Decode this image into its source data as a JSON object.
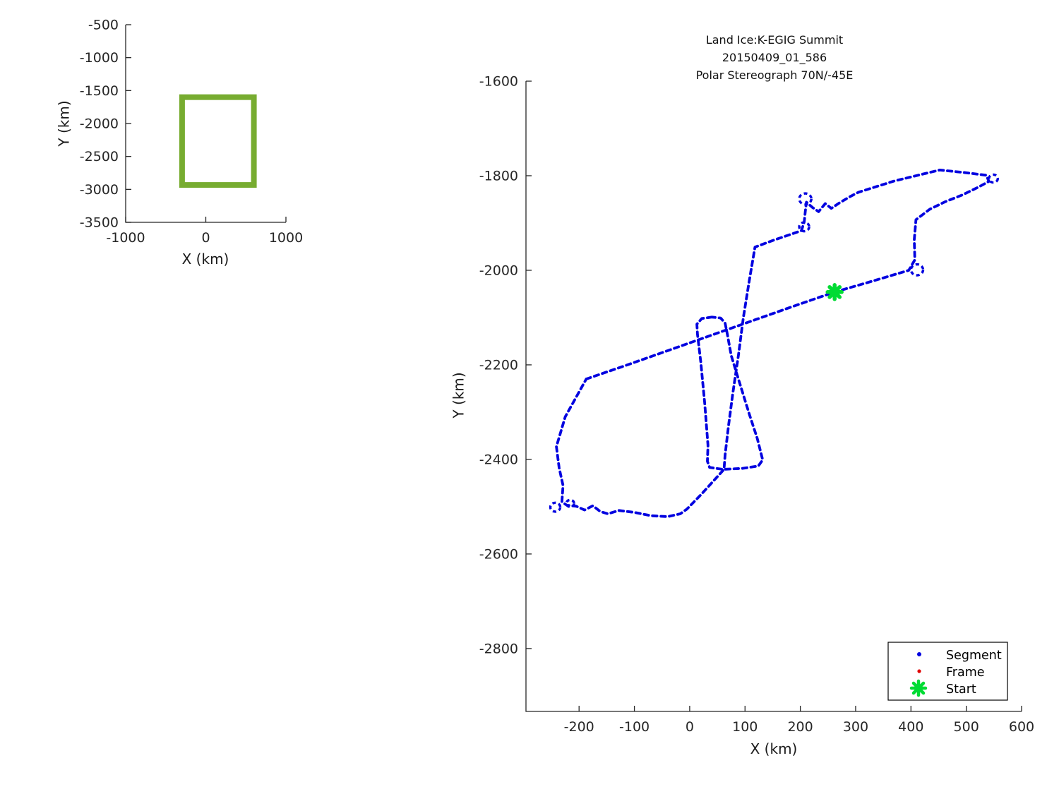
{
  "figure": {
    "title_lines": [
      "Land Ice:K-EGIG Summit",
      "20150409_01_586",
      "Polar Stereograph 70N/-45E"
    ]
  },
  "colors": {
    "segment": "#0202E0",
    "frame": "#E00000",
    "start": "#00DB33",
    "coverage_box": "#77AC30",
    "axis": "#262626"
  },
  "legend": {
    "items": [
      {
        "label": "Segment",
        "marker": "dot",
        "color": "#0202E0"
      },
      {
        "label": "Frame",
        "marker": "dot",
        "color": "#E00000"
      },
      {
        "label": "Start",
        "marker": "asterisk",
        "color": "#00DB33"
      }
    ]
  },
  "chart_data": [
    {
      "id": "coverage-overview",
      "type": "line",
      "title": "",
      "xlabel": "X (km)",
      "ylabel": "Y (km)",
      "xlim": [
        -1000,
        1000
      ],
      "ylim": [
        -3500,
        -500
      ],
      "x_ticks": [
        -1000,
        0,
        1000
      ],
      "y_ticks": [
        -500,
        -1000,
        -1500,
        -2000,
        -2500,
        -3000,
        -3500
      ],
      "grid": false,
      "series": [
        {
          "name": "coverage-extent-box",
          "type": "rect",
          "x0": -296,
          "x1": 600,
          "y0": -2933,
          "y1": -1600,
          "color": "#77AC30",
          "line_width": 8
        }
      ]
    },
    {
      "id": "flight-track",
      "type": "line",
      "title_lines": [
        "Land Ice:K-EGIG Summit",
        "20150409_01_586",
        "Polar Stereograph 70N/-45E"
      ],
      "xlabel": "X (km)",
      "ylabel": "Y (km)",
      "xlim": [
        -296,
        600
      ],
      "ylim": [
        -2933,
        -1600
      ],
      "x_ticks": [
        -200,
        -100,
        0,
        100,
        200,
        300,
        400,
        500,
        600
      ],
      "y_ticks": [
        -1600,
        -1800,
        -2000,
        -2200,
        -2400,
        -2600,
        -2800
      ],
      "grid": false,
      "legend_position": "lower right",
      "series": [
        {
          "name": "Segment",
          "type": "path",
          "color": "#0202E0",
          "line_width": 3.8,
          "dash": [
            6.5,
            5.5
          ],
          "polylines": [
            [
              [
                -187,
                -2230
              ],
              [
                -120,
                -2203
              ],
              [
                -40,
                -2170
              ],
              [
                40,
                -2137
              ],
              [
                120,
                -2104
              ],
              [
                200,
                -2071
              ],
              [
                262,
                -2046
              ],
              [
                330,
                -2023
              ],
              [
                396,
                -2000
              ],
              [
                407,
                -1978
              ],
              [
                406,
                -1935
              ],
              [
                409,
                -1893
              ],
              [
                434,
                -1871
              ],
              [
                462,
                -1855
              ],
              [
                492,
                -1841
              ],
              [
                522,
                -1824
              ],
              [
                541,
                -1812
              ],
              [
                536,
                -1799
              ],
              [
                495,
                -1793
              ],
              [
                452,
                -1788
              ],
              [
                370,
                -1811
              ],
              [
                305,
                -1835
              ],
              [
                287,
                -1846
              ],
              [
                270,
                -1858
              ],
              [
                256,
                -1869
              ],
              [
                245,
                -1859
              ],
              [
                233,
                -1876
              ],
              [
                222,
                -1867
              ],
              [
                211,
                -1856
              ],
              [
                209,
                -1875
              ],
              [
                207,
                -1898
              ],
              [
                202,
                -1916
              ],
              [
                185,
                -1923
              ],
              [
                150,
                -1937
              ],
              [
                118,
                -1951
              ],
              [
                108,
                -2020
              ],
              [
                97,
                -2100
              ],
              [
                88,
                -2180
              ],
              [
                78,
                -2260
              ],
              [
                70,
                -2330
              ],
              [
                64,
                -2390
              ],
              [
                62,
                -2421
              ],
              [
                45,
                -2443
              ],
              [
                20,
                -2475
              ],
              [
                -5,
                -2505
              ],
              [
                -17,
                -2515
              ],
              [
                -40,
                -2521
              ],
              [
                -70,
                -2519
              ],
              [
                -100,
                -2512
              ],
              [
                -128,
                -2508
              ],
              [
                -148,
                -2515
              ],
              [
                -162,
                -2510
              ],
              [
                -175,
                -2498
              ],
              [
                -190,
                -2507
              ],
              [
                -205,
                -2499
              ],
              [
                -222,
                -2497
              ],
              [
                -231,
                -2490
              ],
              [
                -229,
                -2455
              ],
              [
                -236,
                -2418
              ],
              [
                -241,
                -2373
              ],
              [
                -225,
                -2310
              ],
              [
                -187,
                -2230
              ]
            ],
            [
              [
                40,
                -2099
              ],
              [
                22,
                -2102
              ],
              [
                13,
                -2114
              ],
              [
                14,
                -2135
              ],
              [
                20,
                -2194
              ],
              [
                27,
                -2280
              ],
              [
                33,
                -2370
              ],
              [
                32,
                -2404
              ],
              [
                36,
                -2417
              ],
              [
                60,
                -2421
              ],
              [
                95,
                -2419
              ],
              [
                124,
                -2414
              ],
              [
                132,
                -2401
              ],
              [
                122,
                -2355
              ],
              [
                108,
                -2305
              ],
              [
                88,
                -2230
              ],
              [
                75,
                -2180
              ],
              [
                68,
                -2135
              ],
              [
                64,
                -2112
              ],
              [
                56,
                -2101
              ],
              [
                40,
                -2099
              ]
            ]
          ],
          "loops": [
            {
              "cx": 411,
              "cy": -1999,
              "r": 11
            },
            {
              "cx": 549,
              "cy": -1806,
              "r": 8
            },
            {
              "cx": 209,
              "cy": -1849,
              "r": 11
            },
            {
              "cx": 207,
              "cy": -1908,
              "r": 9
            },
            {
              "cx": -243,
              "cy": -2501,
              "r": 9
            },
            {
              "cx": -216,
              "cy": -2493,
              "r": 7
            }
          ]
        },
        {
          "name": "Start",
          "type": "marker",
          "marker": "asterisk",
          "color": "#00DB33",
          "x": 262,
          "y": -2046,
          "size": 10
        }
      ]
    }
  ]
}
